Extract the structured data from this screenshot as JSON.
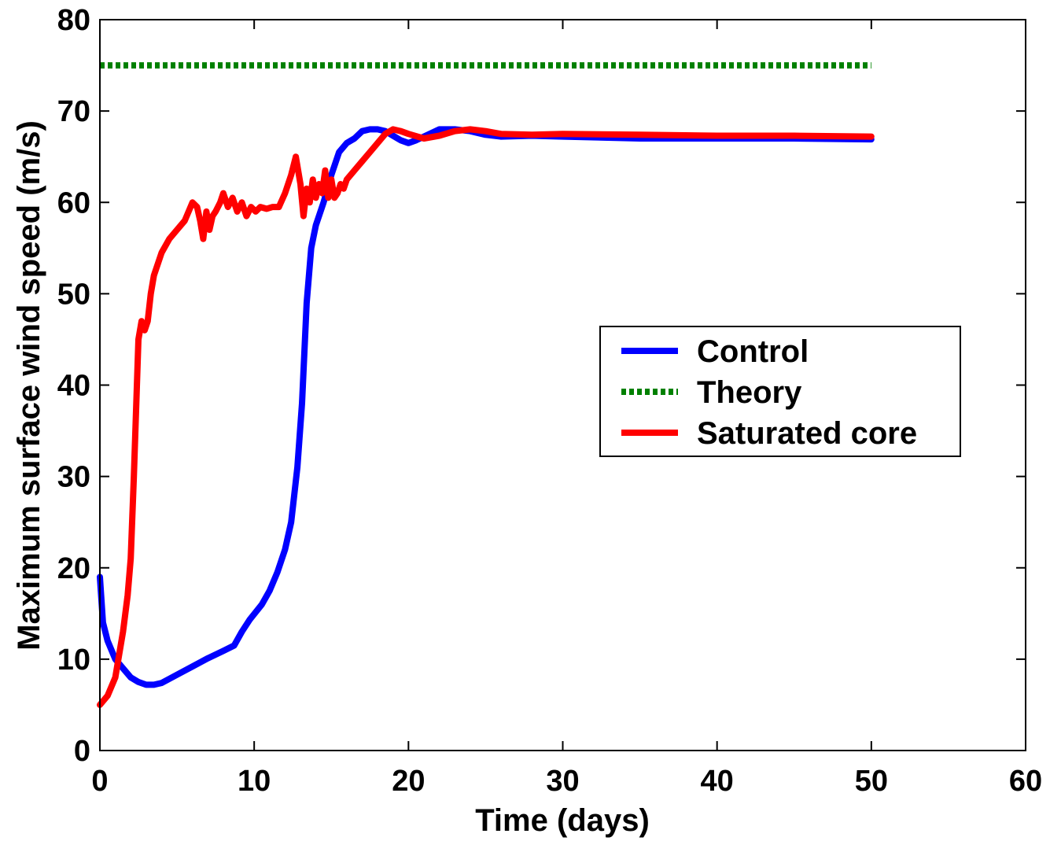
{
  "chart_data": {
    "type": "line",
    "xlabel": "Time (days)",
    "ylabel": "Maximum surface wind speed (m/s)",
    "xlim": [
      0,
      60
    ],
    "ylim": [
      0,
      80
    ],
    "xticks": [
      "0",
      "10",
      "20",
      "30",
      "40",
      "50",
      "60"
    ],
    "yticks": [
      "0",
      "10",
      "20",
      "30",
      "40",
      "50",
      "60",
      "70",
      "80"
    ],
    "grid": false,
    "legend": "center-right",
    "series": [
      {
        "name": "Control",
        "color": "#0000ff",
        "style": "solid",
        "x": [
          0,
          0.2,
          0.5,
          1,
          1.5,
          2,
          2.5,
          3,
          3.5,
          4,
          5,
          6,
          7,
          8,
          8.7,
          9.2,
          9.7,
          10.5,
          11,
          11.5,
          12,
          12.4,
          12.8,
          13.1,
          13.4,
          13.7,
          14,
          14.5,
          15,
          15.5,
          16,
          16.5,
          17,
          17.5,
          18,
          18.5,
          19,
          19.5,
          20,
          20.5,
          21,
          22,
          23,
          24,
          25,
          26,
          28,
          30,
          35,
          40,
          45,
          50
        ],
        "y": [
          19,
          14,
          12,
          10,
          9,
          8,
          7.5,
          7.2,
          7.2,
          7.4,
          8.3,
          9.2,
          10.1,
          10.9,
          11.5,
          13,
          14.3,
          16,
          17.5,
          19.5,
          22,
          25,
          31,
          38,
          49,
          55,
          57.5,
          60,
          63,
          65.5,
          66.5,
          67,
          67.8,
          68,
          68,
          67.8,
          67.3,
          66.8,
          66.5,
          66.8,
          67.2,
          68,
          68,
          67.8,
          67.4,
          67.2,
          67.3,
          67.2,
          67,
          67,
          67,
          66.9
        ]
      },
      {
        "name": "Theory",
        "color": "#008000",
        "style": "dotted",
        "x": [
          0,
          50
        ],
        "y": [
          75,
          75
        ]
      },
      {
        "name": "Saturated core",
        "color": "#ff0000",
        "style": "solid",
        "x": [
          0,
          0.5,
          1,
          1.5,
          1.8,
          2,
          2.2,
          2.5,
          2.7,
          2.9,
          3.1,
          3.3,
          3.5,
          4,
          4.5,
          5,
          5.5,
          6,
          6.3,
          6.5,
          6.7,
          6.9,
          7.1,
          7.3,
          7.5,
          7.8,
          8,
          8.3,
          8.6,
          8.9,
          9.2,
          9.5,
          9.8,
          10.1,
          10.4,
          10.8,
          11.2,
          11.6,
          12,
          12.4,
          12.7,
          13,
          13.2,
          13.4,
          13.6,
          13.8,
          14,
          14.2,
          14.4,
          14.6,
          14.8,
          15,
          15.2,
          15.4,
          15.6,
          15.8,
          16,
          16.5,
          17,
          17.5,
          18,
          18.5,
          19,
          19.5,
          20,
          21,
          22,
          23,
          24,
          25,
          26,
          28,
          30,
          35,
          40,
          45,
          50
        ],
        "y": [
          5,
          6,
          8,
          13,
          17,
          21,
          30,
          45,
          47,
          46,
          47,
          50,
          52,
          54.5,
          56,
          57,
          58,
          60,
          59.5,
          58,
          56,
          59,
          57,
          58.5,
          59,
          60,
          61,
          59.5,
          60.5,
          59,
          60,
          58.5,
          59.5,
          59,
          59.5,
          59.3,
          59.5,
          59.5,
          61,
          63,
          65,
          62,
          58.5,
          61.5,
          60,
          62.5,
          60.5,
          62,
          61,
          63.5,
          60.5,
          62.5,
          60.5,
          61,
          62,
          61.5,
          62.5,
          63.5,
          64.5,
          65.5,
          66.5,
          67.5,
          68,
          67.8,
          67.5,
          67,
          67.3,
          67.8,
          68,
          67.8,
          67.5,
          67.4,
          67.5,
          67.4,
          67.3,
          67.3,
          67.2
        ]
      }
    ]
  }
}
